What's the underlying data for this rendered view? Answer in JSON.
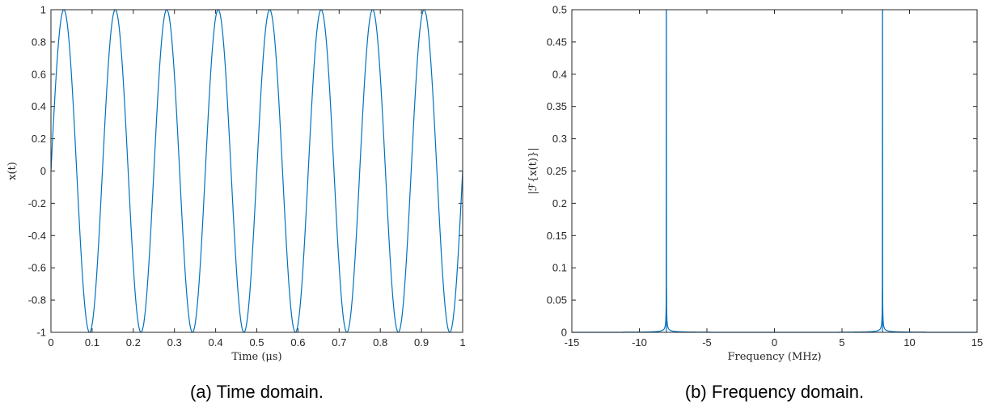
{
  "chart_data": [
    {
      "type": "line",
      "caption": "(a) Time domain.",
      "xlabel": "Time (μs)",
      "ylabel": "x(t)",
      "xlim": [
        0,
        1
      ],
      "ylim": [
        -1,
        1
      ],
      "xticks": [
        "0",
        "0.1",
        "0.2",
        "0.3",
        "0.4",
        "0.5",
        "0.6",
        "0.7",
        "0.8",
        "0.9",
        "1"
      ],
      "xtick_values": [
        0,
        0.1,
        0.2,
        0.3,
        0.4,
        0.5,
        0.6,
        0.7,
        0.8,
        0.9,
        1
      ],
      "yticks": [
        "1",
        "0.8",
        "0.6",
        "0.4",
        "0.2",
        "0",
        "-0.2",
        "-0.4",
        "-0.6",
        "-0.8",
        "-1"
      ],
      "ytick_values": [
        1,
        0.8,
        0.6,
        0.4,
        0.2,
        0,
        -0.2,
        -0.4,
        -0.6,
        -0.8,
        -1
      ],
      "series": [
        {
          "color": "#0072BD",
          "function": "sine",
          "frequency_mhz": 8,
          "amplitude": 1,
          "peaks_at_us": [
            0.031,
            0.156,
            0.281,
            0.406,
            0.531,
            0.656,
            0.781,
            0.906
          ],
          "troughs_at_us": [
            0.094,
            0.219,
            0.344,
            0.469,
            0.594,
            0.719,
            0.844,
            0.969
          ]
        }
      ],
      "grid": false
    },
    {
      "type": "line",
      "caption": "(b) Frequency domain.",
      "xlabel": "Frequency (MHz)",
      "ylabel": "|ℱ{x(t)}|",
      "xlim": [
        -15,
        15
      ],
      "ylim": [
        0,
        0.5
      ],
      "xticks": [
        "-15",
        "-10",
        "-5",
        "0",
        "5",
        "10",
        "15"
      ],
      "xtick_values": [
        -15,
        -10,
        -5,
        0,
        5,
        10,
        15
      ],
      "yticks": [
        "0.5",
        "0.45",
        "0.4",
        "0.35",
        "0.3",
        "0.25",
        "0.2",
        "0.15",
        "0.1",
        "0.05",
        "0"
      ],
      "ytick_values": [
        0.5,
        0.45,
        0.4,
        0.35,
        0.3,
        0.25,
        0.2,
        0.15,
        0.1,
        0.05,
        0
      ],
      "series": [
        {
          "color": "#0072BD",
          "peaks": [
            {
              "x": -8,
              "y": 0.5
            },
            {
              "x": 8,
              "y": 0.5
            }
          ],
          "x_extent": [
            -15,
            15
          ]
        }
      ],
      "grid": false
    }
  ]
}
